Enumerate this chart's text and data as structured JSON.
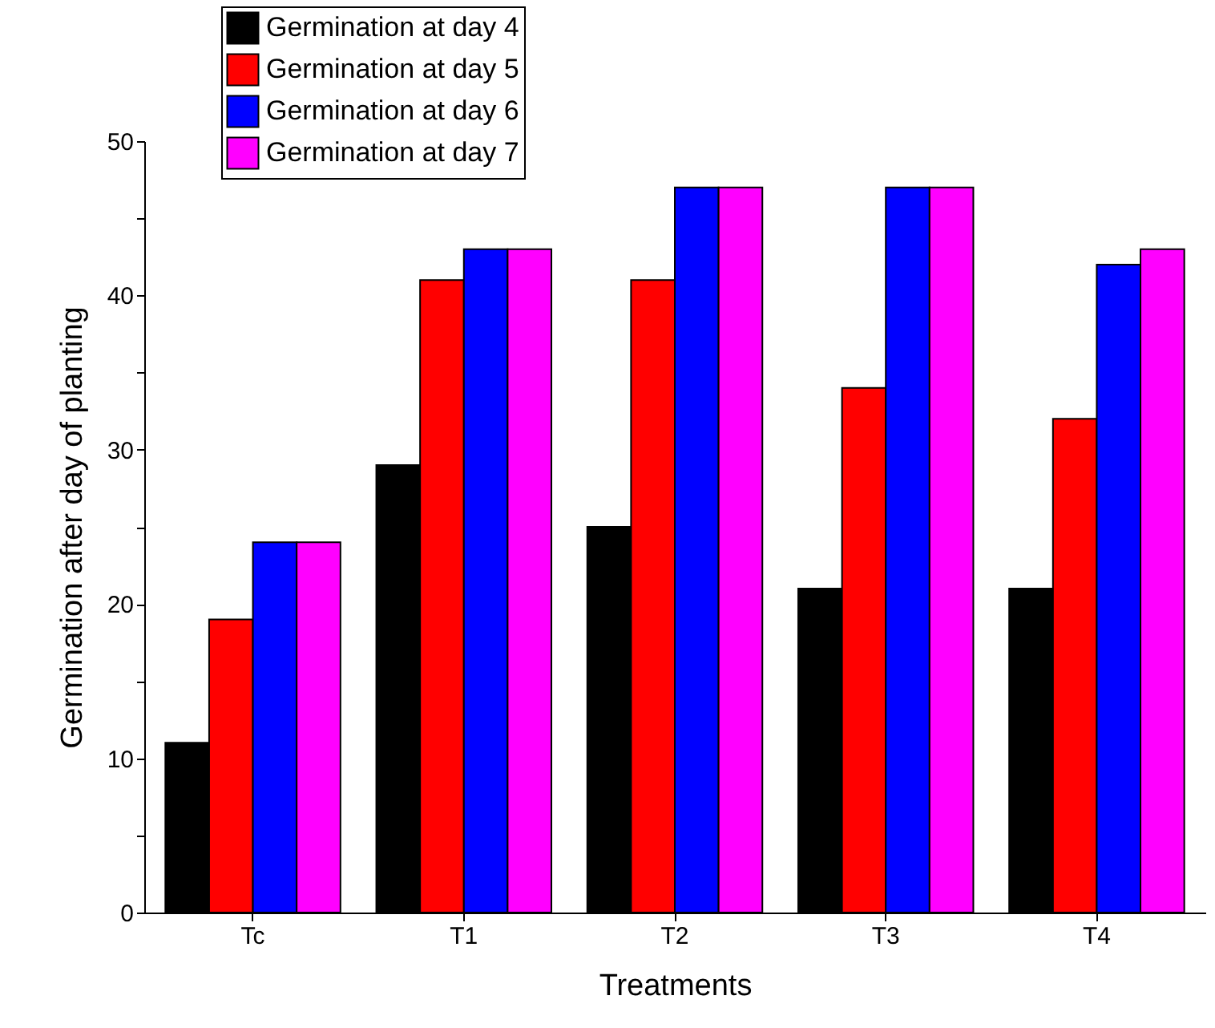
{
  "chart_data": {
    "type": "bar",
    "xlabel": "Treatments",
    "ylabel": "Germination after day of planting",
    "categories": [
      "Tc",
      "T1",
      "T2",
      "T3",
      "T4"
    ],
    "series": [
      {
        "name": "Germination at day 4",
        "color": "#000000",
        "values": [
          11,
          29,
          25,
          21,
          21
        ]
      },
      {
        "name": "Germination at day 5",
        "color": "#ff0000",
        "values": [
          19,
          41,
          41,
          34,
          32
        ]
      },
      {
        "name": "Germination at day 6",
        "color": "#0000ff",
        "values": [
          24,
          43,
          47,
          47,
          42
        ]
      },
      {
        "name": "Germination at day 7",
        "color": "#ff00ff",
        "values": [
          24,
          43,
          47,
          47,
          43
        ]
      }
    ],
    "ylim": [
      0,
      50
    ],
    "yticks": [
      0,
      {
        "value": 5,
        "label": null
      },
      10,
      {
        "value": 15,
        "label": null
      },
      20,
      {
        "value": 25,
        "label": null
      },
      30,
      {
        "value": 35,
        "label": null
      },
      40,
      {
        "value": 45,
        "label": null
      },
      50
    ],
    "grid": false,
    "legend": "top left"
  }
}
